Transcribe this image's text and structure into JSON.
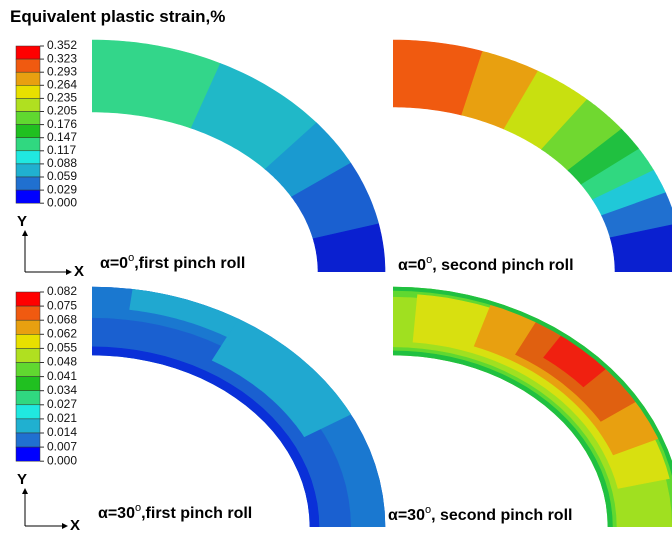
{
  "title": "Equivalent plastic strain,%",
  "legends": [
    {
      "labels": [
        "0.352",
        "0.323",
        "0.293",
        "0.264",
        "0.235",
        "0.205",
        "0.176",
        "0.147",
        "0.117",
        "0.088",
        "0.059",
        "0.029",
        "0.000"
      ]
    },
    {
      "labels": [
        "0.082",
        "0.075",
        "0.068",
        "0.062",
        "0.055",
        "0.048",
        "0.041",
        "0.034",
        "0.027",
        "0.021",
        "0.014",
        "0.007",
        "0.000"
      ]
    }
  ],
  "axes": [
    {
      "y": "Y",
      "x": "X"
    },
    {
      "y": "Y",
      "x": "X"
    }
  ],
  "panels": [
    {
      "prefix": "α=0",
      "sup": "o",
      "suffix": ",first pinch roll"
    },
    {
      "prefix": "α=0",
      "sup": "o",
      "suffix": ", second pinch roll"
    },
    {
      "prefix": "α=30",
      "sup": "o",
      "suffix": ",first pinch roll"
    },
    {
      "prefix": "α=30",
      "sup": "o",
      "suffix": ", second pinch roll"
    }
  ]
}
